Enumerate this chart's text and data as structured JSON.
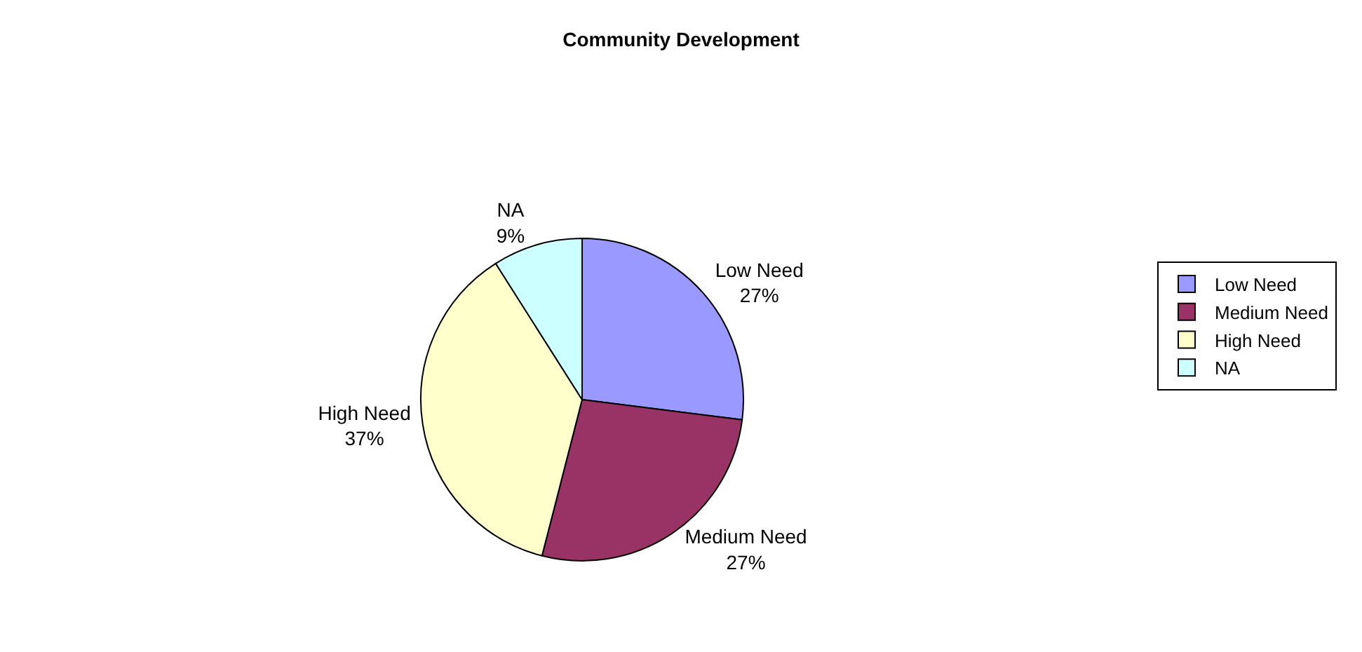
{
  "chart_data": {
    "type": "pie",
    "title": "Community Development",
    "categories": [
      "Low Need",
      "Medium Need",
      "High Need",
      "NA"
    ],
    "values": [
      27,
      27,
      37,
      9
    ],
    "value_labels": [
      "27%",
      "27%",
      "37%",
      "9%"
    ],
    "colors": [
      "#9999ff",
      "#993366",
      "#ffffcc",
      "#ccffff"
    ],
    "legend": "right"
  }
}
